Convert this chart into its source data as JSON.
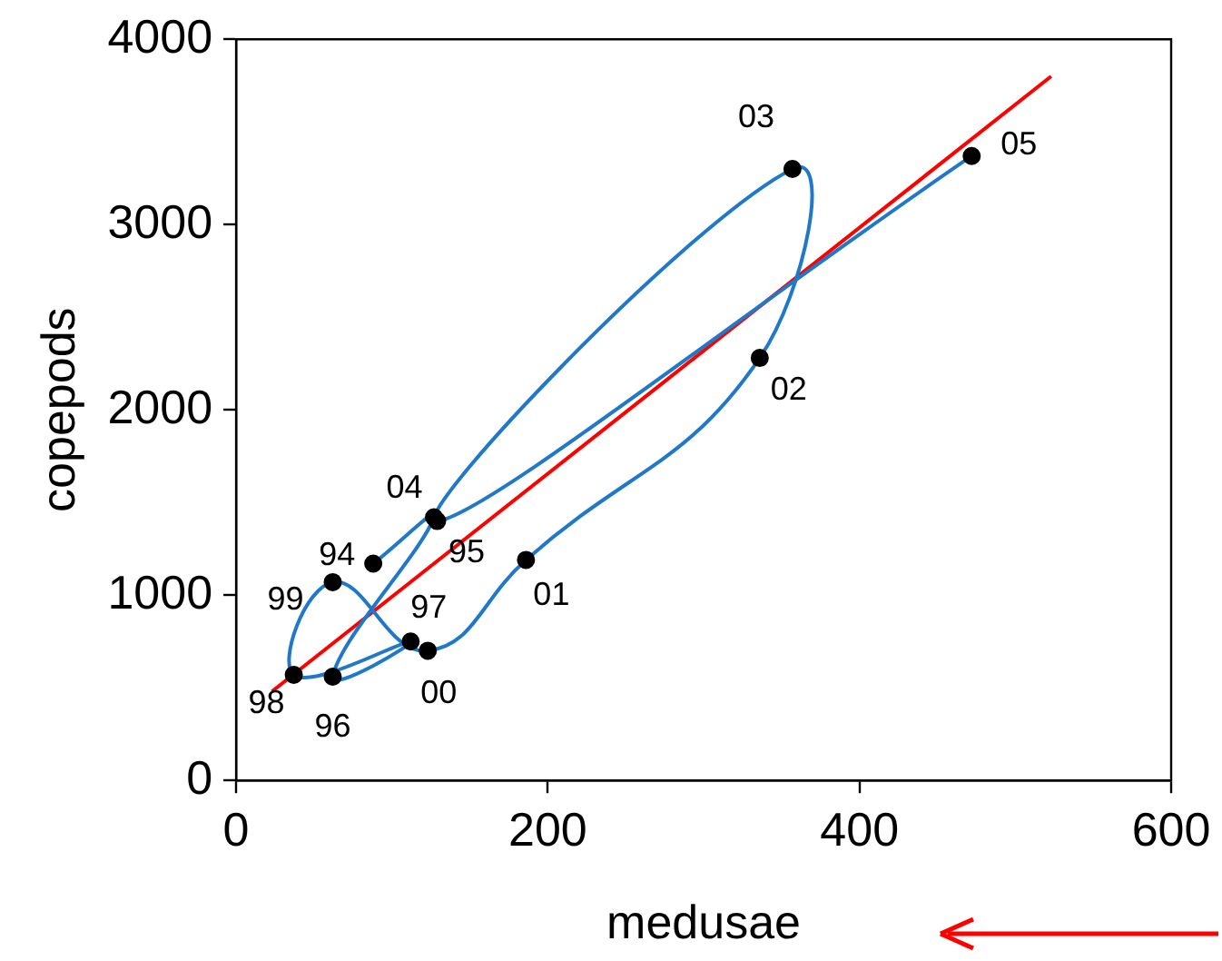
{
  "chart_data": {
    "type": "scatter",
    "xlabel": "medusae",
    "ylabel": "copepods",
    "xlim": [
      0,
      600
    ],
    "xticks": [
      0,
      200,
      400,
      600
    ],
    "ylim": [
      0,
      4000
    ],
    "yticks": [
      0,
      1000,
      2000,
      3000,
      4000
    ],
    "grid": false,
    "legend": false,
    "series": [
      {
        "type": "line",
        "color": "#1f78c8",
        "marker": "none",
        "x": [
          88,
          127,
          62,
          112,
          37,
          62,
          123,
          186,
          336,
          357,
          129,
          472
        ],
        "values": [
          1170,
          1420,
          560,
          750,
          570,
          1070,
          700,
          1190,
          2280,
          3300,
          1400,
          3370
        ]
      },
      {
        "type": "scatter",
        "color": "#000000",
        "marker": "circle",
        "x": [
          88,
          127,
          62,
          112,
          37,
          62,
          123,
          186,
          336,
          357,
          129,
          472
        ],
        "values": [
          1170,
          1420,
          560,
          750,
          570,
          1070,
          700,
          1190,
          2280,
          3300,
          1400,
          3370
        ]
      },
      {
        "type": "line",
        "color": "#ff0000",
        "marker": "none",
        "x": [
          23,
          523
        ],
        "values": [
          480,
          3800
        ]
      }
    ],
    "annotations": [
      {
        "text": "94",
        "x": 88,
        "y": 1170
      },
      {
        "text": "95",
        "x": 127,
        "y": 1420
      },
      {
        "text": "96",
        "x": 62,
        "y": 560
      },
      {
        "text": "97",
        "x": 112,
        "y": 750
      },
      {
        "text": "98",
        "x": 37,
        "y": 570
      },
      {
        "text": "99",
        "x": 62,
        "y": 1070
      },
      {
        "text": "00",
        "x": 123,
        "y": 700
      },
      {
        "text": "01",
        "x": 186,
        "y": 1190
      },
      {
        "text": "02",
        "x": 336,
        "y": 2280
      },
      {
        "text": "03",
        "x": 357,
        "y": 3300
      },
      {
        "text": "04",
        "x": 129,
        "y": 1400
      },
      {
        "text": "05",
        "x": 472,
        "y": 3370
      }
    ]
  }
}
